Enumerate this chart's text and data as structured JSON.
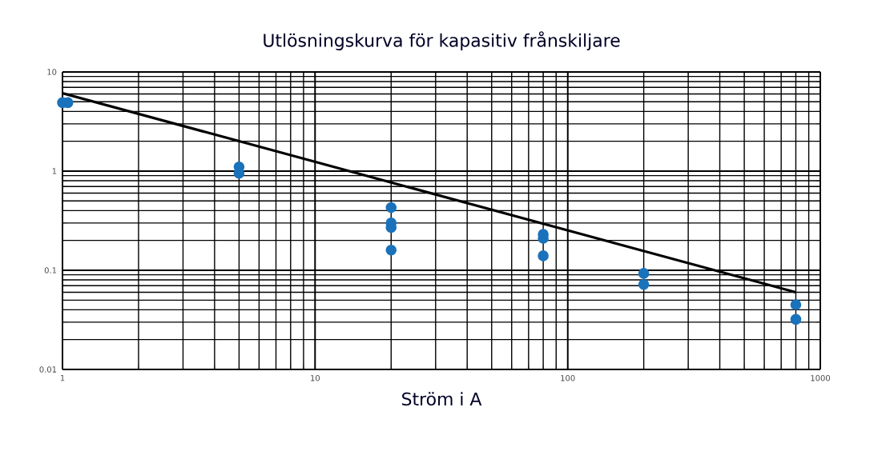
{
  "chart_data": {
    "type": "scatter",
    "title": "Utlösningskurva för kapasitiv frånskiljare",
    "xlabel": "Ström i A",
    "log": "xy",
    "grid": true,
    "xlim": [
      1,
      1000
    ],
    "xticks": [
      1,
      10,
      100,
      1000
    ],
    "ylim": [
      0.01,
      10
    ],
    "yticks": [
      0.01,
      0.1,
      1,
      10
    ],
    "series": [
      {
        "type": "line",
        "color": "#000000",
        "marker": "none",
        "line_style": "solid",
        "x": [
          1,
          800
        ],
        "values": [
          6.1,
          0.06
        ]
      },
      {
        "color": "#1a72bb",
        "marker": "circle",
        "x": [
          1,
          1.05,
          5,
          5,
          20,
          20,
          20,
          20,
          80,
          80,
          80,
          200,
          200,
          800,
          800
        ],
        "values": [
          4.9,
          4.9,
          1.1,
          0.95,
          0.43,
          0.3,
          0.27,
          0.16,
          0.23,
          0.21,
          0.14,
          0.093,
          0.072,
          0.045,
          0.032
        ]
      }
    ]
  }
}
